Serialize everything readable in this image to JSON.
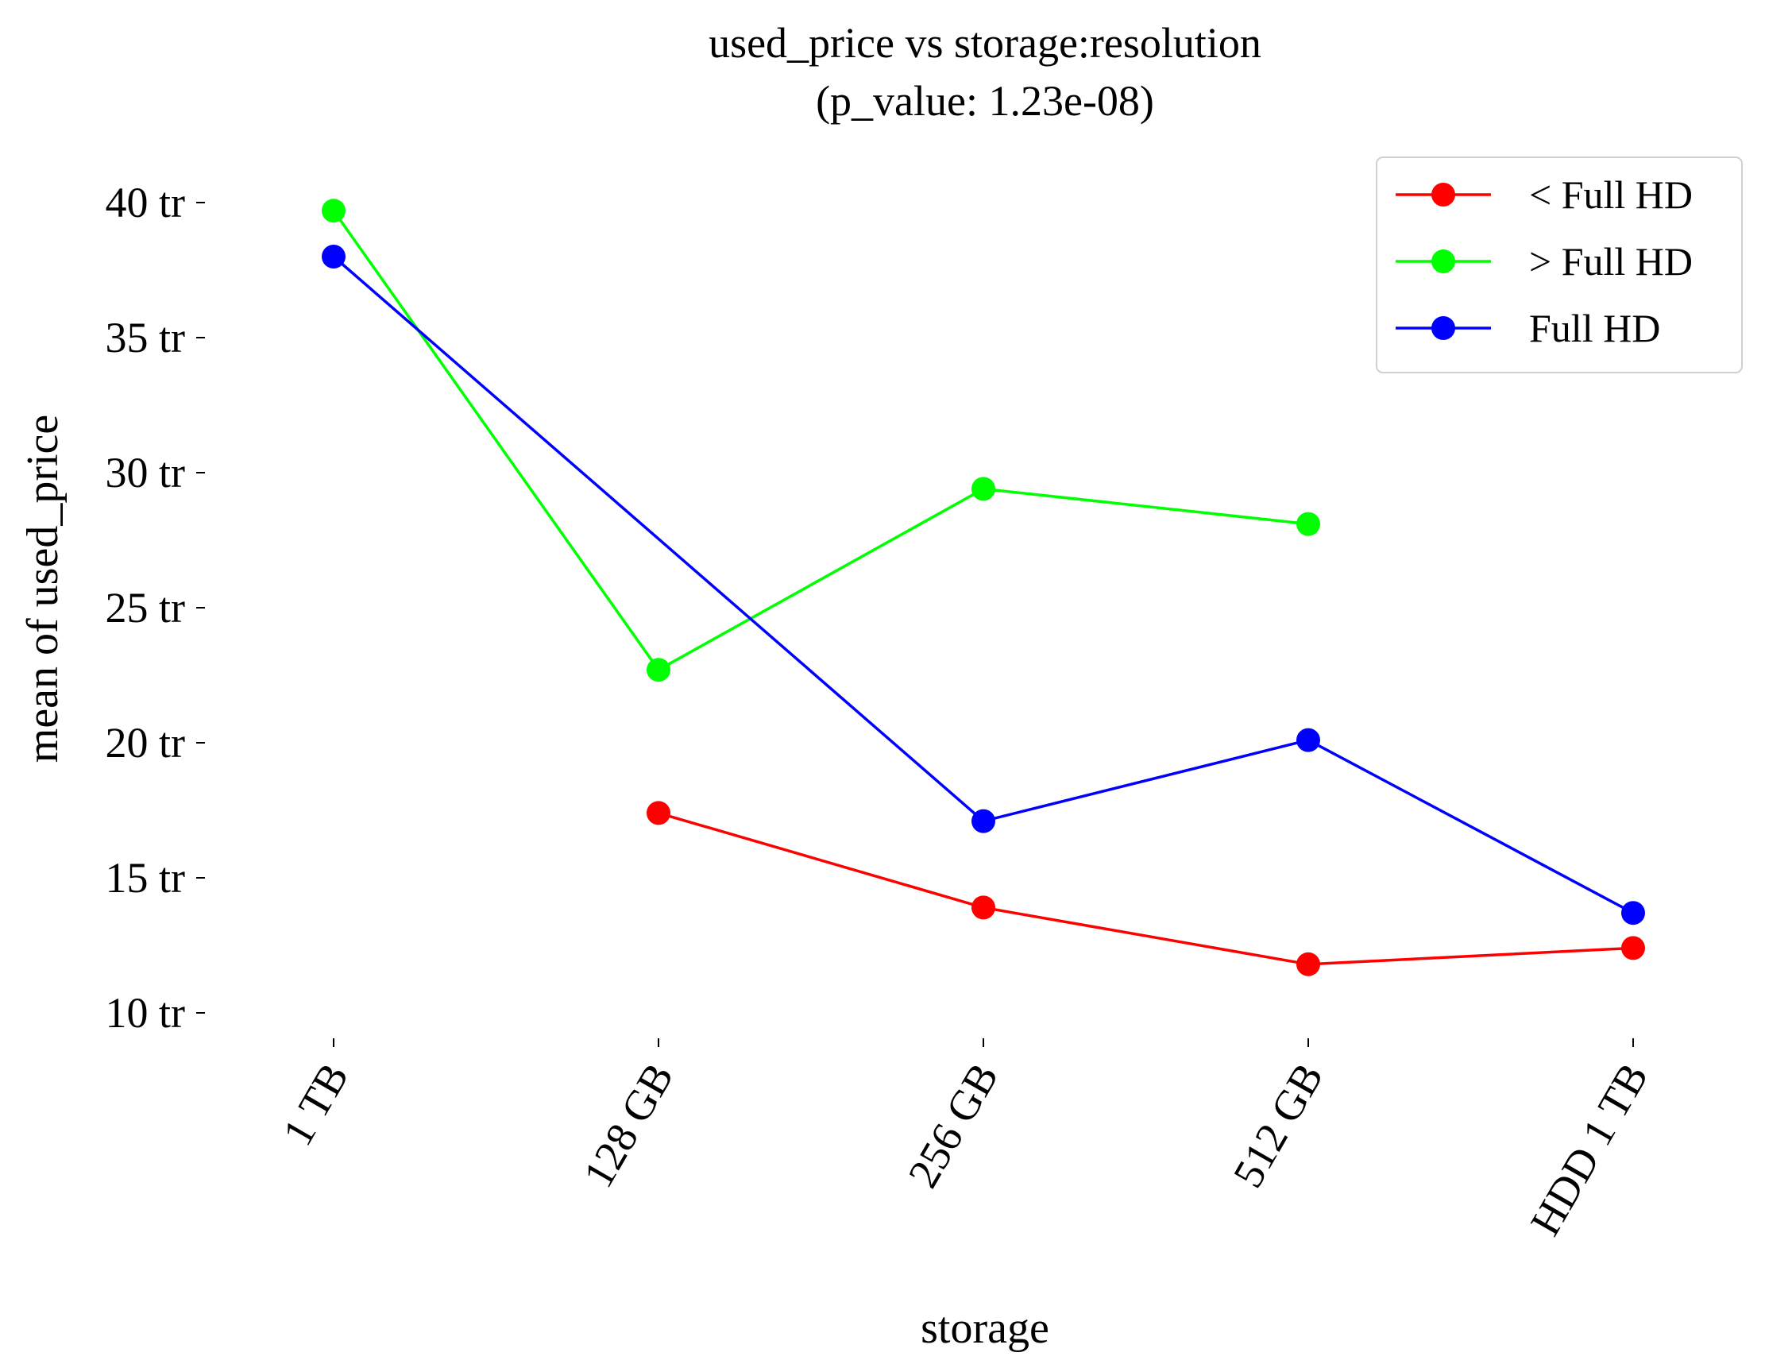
{
  "chart_data": {
    "type": "line",
    "title": "used_price vs storage:resolution",
    "subtitle": "(p_value: 1.23e-08)",
    "xlabel": "storage",
    "ylabel": "mean of used_price",
    "categories": [
      "1 TB",
      "128 GB",
      "256 GB",
      "512 GB",
      "HDD 1 TB"
    ],
    "ylim": [
      9,
      41
    ],
    "yticks": [
      10,
      15,
      20,
      25,
      30,
      35,
      40
    ],
    "ytick_suffix": " tr",
    "grid": false,
    "legend_position": "top-right",
    "series": [
      {
        "name": "< Full HD",
        "color": "#ff0000",
        "values": [
          null,
          17.4,
          13.9,
          11.8,
          12.4
        ]
      },
      {
        "name": "> Full HD",
        "color": "#00ff00",
        "values": [
          39.7,
          22.7,
          29.4,
          28.1,
          null
        ]
      },
      {
        "name": "Full HD",
        "color": "#0000ff",
        "values": [
          38.0,
          null,
          17.1,
          20.1,
          13.7
        ]
      }
    ]
  }
}
